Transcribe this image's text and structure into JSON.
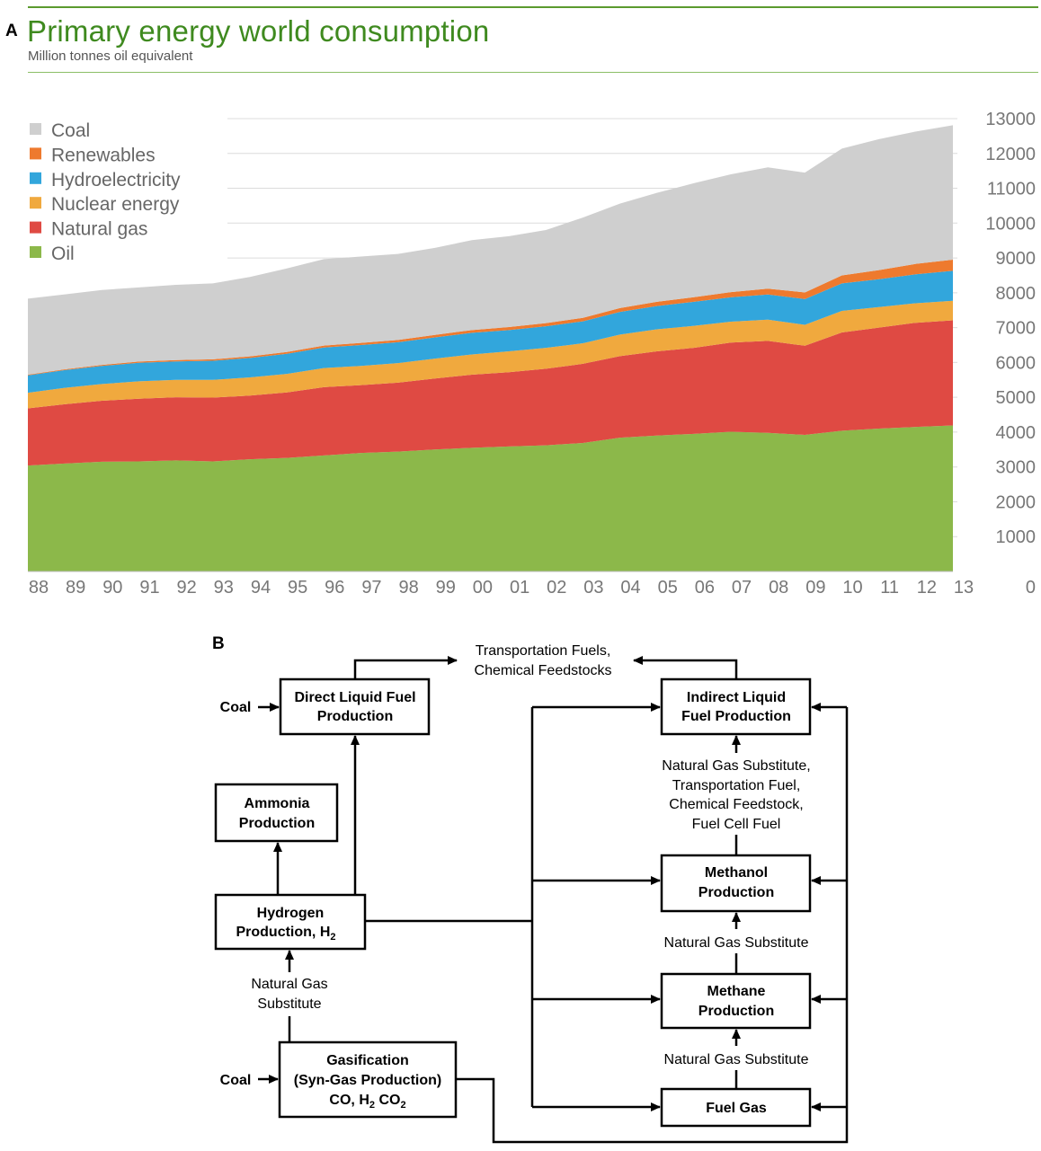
{
  "panel_a_label": "A",
  "panel_b_label": "B",
  "chart_data": {
    "type": "area",
    "stacked": true,
    "title": "Primary energy world consumption",
    "subtitle": "Million tonnes oil equivalent",
    "xlabel": "",
    "ylabel": "",
    "ylim": [
      0,
      13000
    ],
    "yticks": [
      0,
      1000,
      2000,
      3000,
      4000,
      5000,
      6000,
      7000,
      8000,
      9000,
      10000,
      11000,
      12000,
      13000
    ],
    "legend_position": "top-left",
    "categories": [
      "88",
      "89",
      "90",
      "91",
      "92",
      "93",
      "94",
      "95",
      "96",
      "97",
      "98",
      "99",
      "00",
      "01",
      "02",
      "03",
      "04",
      "05",
      "06",
      "07",
      "08",
      "09",
      "10",
      "11",
      "12",
      "13"
    ],
    "series": [
      {
        "name": "Oil",
        "color": "#8cb84a",
        "values": [
          3040,
          3100,
          3150,
          3160,
          3190,
          3160,
          3220,
          3260,
          3330,
          3400,
          3440,
          3500,
          3550,
          3590,
          3620,
          3690,
          3840,
          3900,
          3950,
          4010,
          3980,
          3920,
          4040,
          4100,
          4150,
          4190
        ]
      },
      {
        "name": "Natural gas",
        "color": "#df4a43",
        "values": [
          1640,
          1700,
          1750,
          1800,
          1810,
          1830,
          1830,
          1880,
          1960,
          1950,
          1980,
          2040,
          2100,
          2130,
          2200,
          2270,
          2340,
          2420,
          2470,
          2560,
          2640,
          2560,
          2820,
          2900,
          2990,
          3020
        ]
      },
      {
        "name": "Nuclear energy",
        "color": "#f0a93e",
        "values": [
          450,
          470,
          480,
          500,
          500,
          510,
          520,
          530,
          550,
          550,
          560,
          570,
          580,
          600,
          600,
          590,
          620,
          630,
          630,
          600,
          610,
          600,
          620,
          590,
          560,
          560
        ]
      },
      {
        "name": "Hydroelectricity",
        "color": "#32a6dc",
        "values": [
          500,
          510,
          520,
          530,
          530,
          550,
          560,
          580,
          590,
          600,
          600,
          610,
          620,
          610,
          620,
          630,
          650,
          670,
          690,
          700,
          720,
          740,
          790,
          800,
          830,
          860
        ]
      },
      {
        "name": "Renewables",
        "color": "#ee7a2e",
        "values": [
          20,
          25,
          30,
          35,
          38,
          40,
          45,
          50,
          55,
          60,
          65,
          70,
          80,
          85,
          90,
          100,
          110,
          120,
          135,
          150,
          170,
          190,
          230,
          260,
          300,
          320
        ]
      },
      {
        "name": "Coal",
        "color": "#cfcfcf",
        "values": [
          2180,
          2150,
          2150,
          2130,
          2160,
          2180,
          2280,
          2400,
          2480,
          2480,
          2470,
          2500,
          2580,
          2610,
          2670,
          2880,
          3000,
          3130,
          3270,
          3380,
          3480,
          3440,
          3640,
          3760,
          3800,
          3860
        ]
      }
    ],
    "legend_order": [
      "Coal",
      "Renewables",
      "Hydroelectricity",
      "Nuclear energy",
      "Natural gas",
      "Oil"
    ]
  },
  "flow": {
    "boxes": {
      "direct_liquid": [
        "Direct Liquid Fuel",
        "Production"
      ],
      "indirect_liquid": [
        "Indirect Liquid",
        "Fuel Production"
      ],
      "ammonia": [
        "Ammonia",
        "Production"
      ],
      "hydrogen": [
        "Hydrogen",
        "Production, H"
      ],
      "hydrogen_sub": "2",
      "methanol": [
        "Methanol",
        "Production"
      ],
      "methane": [
        "Methane",
        "Production"
      ],
      "gasification_1": "Gasification",
      "gasification_2": "(Syn-Gas Production)",
      "gasification_3a": "CO, H",
      "gasification_3sub": "2",
      "gasification_3b": " CO",
      "gasification_3sub2": "2",
      "fuel_gas": "Fuel Gas"
    },
    "labels": {
      "coal_top": "Coal",
      "coal_bottom": "Coal",
      "transport_fuels": [
        "Transportation Fuels,",
        "Chemical Feedstocks"
      ],
      "indirect_products": [
        "Natural Gas Substitute,",
        "Transportation Fuel,",
        "Chemical Feedstock,",
        "Fuel Cell Fuel"
      ],
      "ngs_methanol": "Natural Gas Substitute",
      "ngs_methane": "Natural Gas Substitute",
      "ngs_hydrogen": [
        "Natural Gas",
        "Substitute"
      ]
    }
  }
}
